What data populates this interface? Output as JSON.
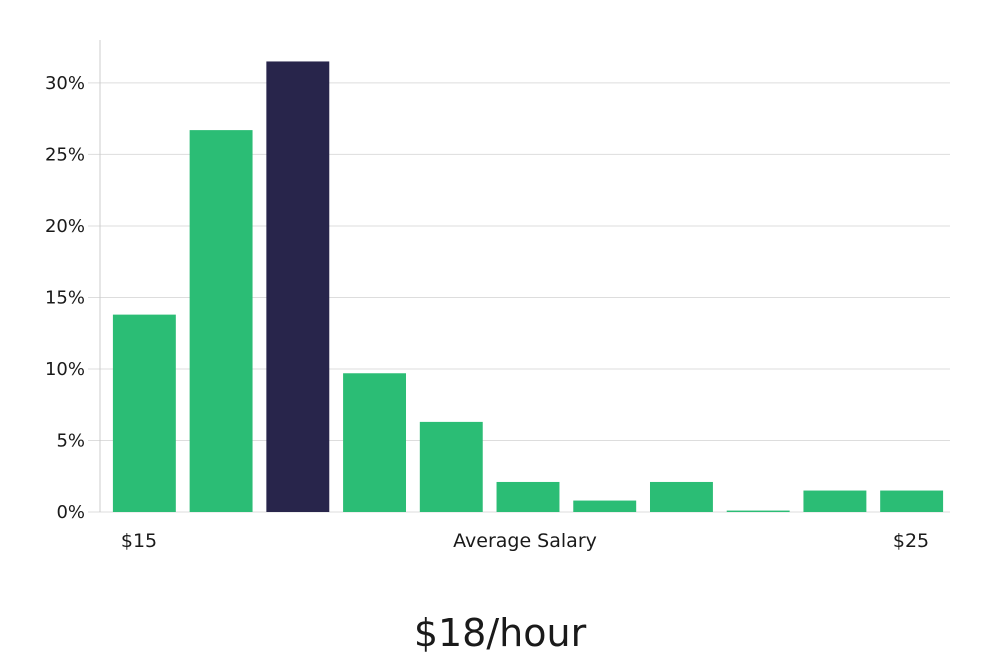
{
  "headline": "$18/hour",
  "chart_data": {
    "type": "bar",
    "xlabel": "Average Salary",
    "x_end_labels": [
      "$15",
      "$25"
    ],
    "ylim": [
      0,
      33
    ],
    "yticks": [
      0,
      5,
      10,
      15,
      20,
      25,
      30
    ],
    "ytick_labels": [
      "0%",
      "5%",
      "10%",
      "15%",
      "20%",
      "25%",
      "30%"
    ],
    "grid": true,
    "values": [
      13.8,
      26.7,
      31.5,
      9.7,
      6.3,
      2.1,
      0.8,
      2.1,
      0.1,
      1.5,
      1.5
    ],
    "highlight_index": 2,
    "colors": {
      "bar": "#2bbd75",
      "highlight": "#28254b",
      "grid": "#dddddd",
      "axis": "#cccccc"
    }
  }
}
